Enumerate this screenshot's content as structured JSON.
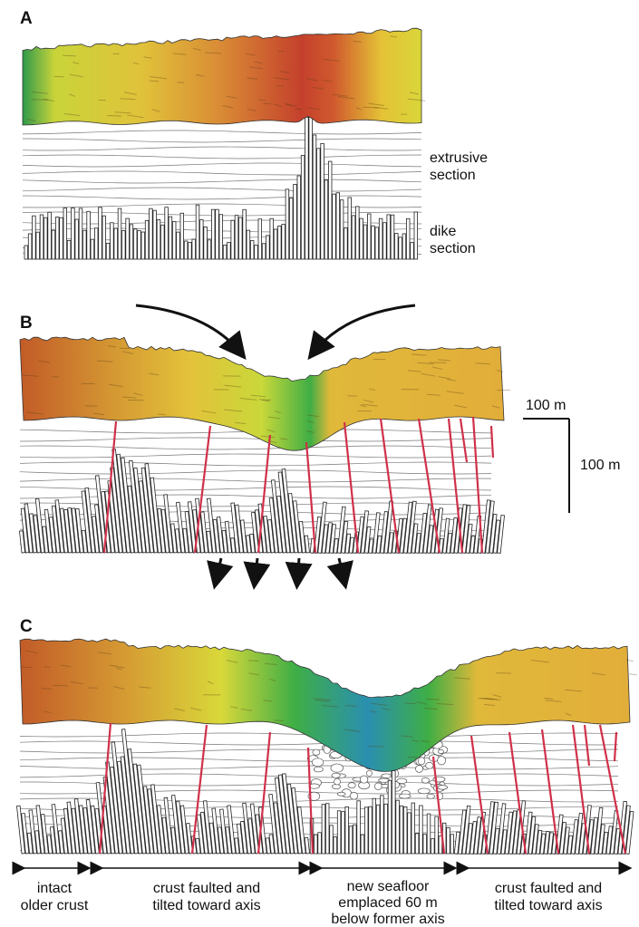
{
  "panels": [
    {
      "label": "A",
      "labels": [
        {
          "lines": [
            "extrusive",
            "section"
          ]
        },
        {
          "lines": [
            "dike",
            "section"
          ]
        }
      ]
    },
    {
      "label": "B"
    },
    {
      "label": "C"
    }
  ],
  "scale_bar": {
    "horizontal": "100 m",
    "vertical": "100 m"
  },
  "ranges": [
    {
      "lines": [
        "intact",
        "older crust"
      ]
    },
    {
      "lines": [
        "crust faulted and",
        "tilted toward axis"
      ]
    },
    {
      "lines": [
        "new seafloor",
        "emplaced 60 m",
        "below former axis"
      ]
    },
    {
      "lines": [
        "crust faulted and",
        "tilted toward axis"
      ]
    }
  ]
}
